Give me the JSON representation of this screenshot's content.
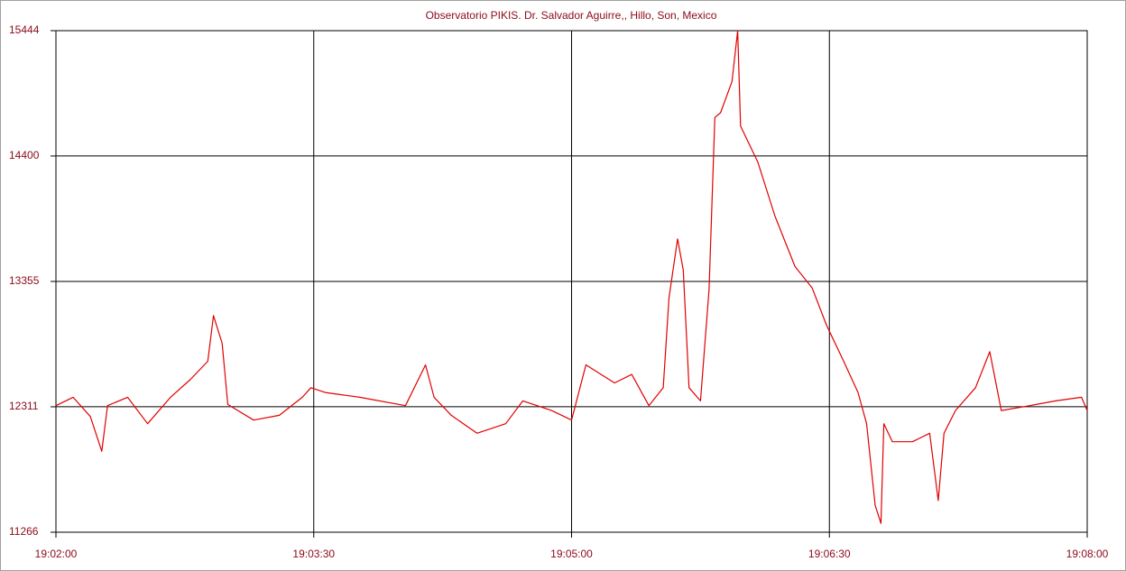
{
  "chart_data": {
    "type": "line",
    "title": "Observatorio PIKIS. Dr. Salvador Aguirre,, Hillo, Son, Mexico",
    "x": [
      "19:02:00",
      "19:02:06",
      "19:02:12",
      "19:02:16",
      "19:02:18",
      "19:02:25",
      "19:02:32",
      "19:02:40",
      "19:02:47",
      "19:02:53",
      "19:02:55",
      "19:02:58",
      "19:03:00",
      "19:03:09",
      "19:03:18",
      "19:03:26",
      "19:03:29",
      "19:03:34",
      "19:03:46",
      "19:04:02",
      "19:04:09",
      "19:04:12",
      "19:04:18",
      "19:04:27",
      "19:04:37",
      "19:04:43",
      "19:04:53",
      "19:05:00",
      "19:05:05",
      "19:05:15",
      "19:05:21",
      "19:05:27",
      "19:05:32",
      "19:05:34",
      "19:05:37",
      "19:05:39",
      "19:05:41",
      "19:05:45",
      "19:05:48",
      "19:05:50",
      "19:05:52",
      "19:05:56",
      "19:05:58",
      "19:05:59",
      "19:06:05",
      "19:06:11",
      "19:06:18",
      "19:06:24",
      "19:06:29",
      "19:06:35",
      "19:06:40",
      "19:06:43",
      "19:06:46",
      "19:06:48",
      "19:06:49",
      "19:06:52",
      "19:06:59",
      "19:07:05",
      "19:07:08",
      "19:07:10",
      "19:07:14",
      "19:07:21",
      "19:07:26",
      "19:07:30",
      "19:07:40",
      "19:07:49",
      "19:07:58",
      "19:08:00"
    ],
    "values": [
      12320,
      12390,
      12230,
      11940,
      12320,
      12390,
      12170,
      12390,
      12540,
      12690,
      13070,
      12840,
      12330,
      12200,
      12240,
      12390,
      12470,
      12430,
      12390,
      12320,
      12660,
      12390,
      12240,
      12090,
      12170,
      12360,
      12280,
      12200,
      12660,
      12510,
      12580,
      12320,
      12470,
      13220,
      13710,
      13450,
      12470,
      12360,
      13290,
      14720,
      14760,
      15020,
      15444,
      14650,
      14350,
      13900,
      13480,
      13300,
      12990,
      12690,
      12430,
      12170,
      11490,
      11340,
      12170,
      12020,
      12020,
      12090,
      11530,
      12090,
      12280,
      12470,
      12770,
      12280,
      12320,
      12360,
      12390,
      12280
    ],
    "color": "#e00000",
    "xlim": [
      "19:02:00",
      "19:08:00"
    ],
    "xticks": [
      "19:02:00",
      "19:03:30",
      "19:05:00",
      "19:06:30",
      "19:08:00"
    ],
    "ylim": [
      11266,
      15444
    ],
    "yticks": [
      11266,
      12311,
      13355,
      14400,
      15444
    ],
    "grid": true
  }
}
